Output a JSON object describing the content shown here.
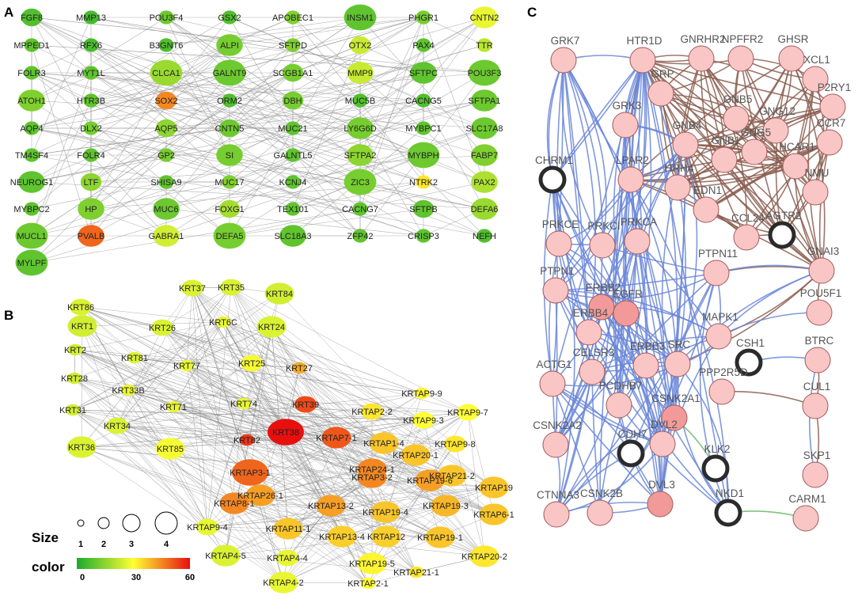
{
  "panel_a": {
    "letter": "A",
    "nodes": [
      [
        "FGF8",
        0.12,
        2
      ],
      [
        "MMP13",
        0.1,
        1
      ],
      [
        "POU3F4",
        0.18,
        1
      ],
      [
        "GSX2",
        0.12,
        1
      ],
      [
        "APOBEC1",
        0.22,
        1
      ],
      [
        "INSM1",
        0.15,
        4
      ],
      [
        "PHGR1",
        0.2,
        1
      ],
      [
        "CNTN2",
        0.45,
        3
      ],
      [
        "MPPED1",
        0.15,
        1
      ],
      [
        "RFX6",
        0.1,
        1
      ],
      [
        "B3GNT6",
        0.12,
        1
      ],
      [
        "ALPI",
        0.2,
        3
      ],
      [
        "SFTPD",
        0.22,
        1
      ],
      [
        "OTX2",
        0.38,
        2
      ],
      [
        "PAX4",
        0.15,
        1
      ],
      [
        "TTR",
        0.35,
        1
      ],
      [
        "FOLR3",
        0.15,
        1
      ],
      [
        "MYT1L",
        0.15,
        1
      ],
      [
        "CLCA1",
        0.28,
        4
      ],
      [
        "GALNT9",
        0.18,
        4
      ],
      [
        "SCGB1A1",
        0.2,
        2
      ],
      [
        "MMP9",
        0.38,
        3
      ],
      [
        "SFTPC",
        0.15,
        3
      ],
      [
        "POU3F3",
        0.18,
        4
      ],
      [
        "ATOH1",
        0.22,
        3
      ],
      [
        "HTR3B",
        0.15,
        1
      ],
      [
        "SOX2",
        0.75,
        2
      ],
      [
        "ORM2",
        0.12,
        1
      ],
      [
        "DBH",
        0.2,
        2
      ],
      [
        "MUC5B",
        0.12,
        1
      ],
      [
        "CACNG5",
        0.12,
        1
      ],
      [
        "SFTPA1",
        0.18,
        3
      ],
      [
        "AQP4",
        0.15,
        1
      ],
      [
        "DLX2",
        0.2,
        1
      ],
      [
        "AQP5",
        0.25,
        2
      ],
      [
        "CNTN5",
        0.18,
        2
      ],
      [
        "MUC21",
        0.15,
        1
      ],
      [
        "LY6G6D",
        0.2,
        3
      ],
      [
        "MYBPC1",
        0.15,
        1
      ],
      [
        "SLC17A8",
        0.18,
        3
      ],
      [
        "TM4SF4",
        0.15,
        1
      ],
      [
        "FOLR4",
        0.15,
        1
      ],
      [
        "GP2",
        0.2,
        1
      ],
      [
        "SI",
        0.2,
        3
      ],
      [
        "GALNTL5",
        0.15,
        1
      ],
      [
        "SFTPA2",
        0.25,
        3
      ],
      [
        "MYBPH",
        0.18,
        4
      ],
      [
        "FABP7",
        0.22,
        3
      ],
      [
        "NEUROG1",
        0.15,
        3
      ],
      [
        "LTF",
        0.25,
        2
      ],
      [
        "SHISA9",
        0.15,
        1
      ],
      [
        "MUC17",
        0.22,
        1
      ],
      [
        "KCNJ4",
        0.15,
        1
      ],
      [
        "ZIC3",
        0.2,
        4
      ],
      [
        "NTRK2",
        0.55,
        1
      ],
      [
        "PAX2",
        0.32,
        3
      ],
      [
        "MYBPC2",
        0.15,
        1
      ],
      [
        "HP",
        0.22,
        3
      ],
      [
        "MUC6",
        0.18,
        3
      ],
      [
        "FOXG1",
        0.3,
        2
      ],
      [
        "TEX101",
        0.15,
        1
      ],
      [
        "CACNG7",
        0.15,
        1
      ],
      [
        "SFTPB",
        0.15,
        2
      ],
      [
        "DEFA6",
        0.28,
        3
      ],
      [
        "MUCL1",
        0.18,
        4
      ],
      [
        "PVALB",
        0.82,
        3
      ],
      [
        "GABRA1",
        0.4,
        3
      ],
      [
        "DEFA5",
        0.2,
        4
      ],
      [
        "SLC18A3",
        0.15,
        3
      ],
      [
        "ZFP42",
        0.15,
        1
      ],
      [
        "CRISP3",
        0.15,
        1
      ],
      [
        "NEFH",
        0.12,
        1
      ],
      [
        "MYLPF",
        0.15,
        4
      ]
    ]
  },
  "panel_b": {
    "letter": "B",
    "nodes": [
      [
        "KRT37",
        0.42,
        2
      ],
      [
        "KRT35",
        0.42,
        2
      ],
      [
        "KRT84",
        0.4,
        3
      ],
      [
        "KRT86",
        0.42,
        2
      ],
      [
        "KRT1",
        0.4,
        3
      ],
      [
        "KRT26",
        0.42,
        2
      ],
      [
        "KRT6C",
        0.45,
        1
      ],
      [
        "KRT24",
        0.42,
        3
      ],
      [
        "KRT2",
        0.4,
        1
      ],
      [
        "KRT81",
        0.42,
        1
      ],
      [
        "KRT77",
        0.45,
        1
      ],
      [
        "KRT25",
        0.48,
        2
      ],
      [
        "KRT27",
        0.68,
        1
      ],
      [
        "KRT28",
        0.4,
        1
      ],
      [
        "KRT33B",
        0.45,
        1
      ],
      [
        "KRT31",
        0.4,
        1
      ],
      [
        "KRT71",
        0.45,
        1
      ],
      [
        "KRT74",
        0.45,
        1
      ],
      [
        "KRT39",
        0.88,
        2
      ],
      [
        "KRT34",
        0.42,
        2
      ],
      [
        "KRT36",
        0.42,
        3
      ],
      [
        "KRT85",
        0.48,
        3
      ],
      [
        "KRT82",
        0.92,
        1
      ],
      [
        "KRT38",
        1.0,
        4
      ],
      [
        "KRTAP9-9",
        0.52,
        1
      ],
      [
        "KRTAP2-2",
        0.55,
        2
      ],
      [
        "KRTAP9-7",
        0.5,
        2
      ],
      [
        "KRTAP9-3",
        0.5,
        2
      ],
      [
        "KRTAP7-1",
        0.85,
        3
      ],
      [
        "KRTAP1-4",
        0.62,
        3
      ],
      [
        "KRTAP9-8",
        0.55,
        2
      ],
      [
        "KRTAP20-1",
        0.62,
        3
      ],
      [
        "KRTAP24-1",
        0.75,
        3
      ],
      [
        "KRTAP3-1",
        0.82,
        4
      ],
      [
        "KRTAP3-2",
        0.75,
        3
      ],
      [
        "KRTAP21-2",
        0.62,
        3
      ],
      [
        "KRTAP26-1",
        0.7,
        3
      ],
      [
        "KRTAP19-6",
        0.7,
        3
      ],
      [
        "KRTAP19",
        0.62,
        3
      ],
      [
        "KRTAP8-1",
        0.75,
        3
      ],
      [
        "KRTAP13-2",
        0.7,
        3
      ],
      [
        "KRTAP19-3",
        0.65,
        3
      ],
      [
        "KRTAP19-4",
        0.62,
        3
      ],
      [
        "KRTAP6-1",
        0.62,
        3
      ],
      [
        "KRTAP9-4",
        0.45,
        2
      ],
      [
        "KRTAP11-1",
        0.62,
        3
      ],
      [
        "KRTAP13-4",
        0.6,
        3
      ],
      [
        "KRTAP12",
        0.6,
        3
      ],
      [
        "KRTAP19-1",
        0.62,
        3
      ],
      [
        "KRTAP4-5",
        0.42,
        3
      ],
      [
        "KRTAP4-4",
        0.45,
        2
      ],
      [
        "KRTAP19-5",
        0.52,
        3
      ],
      [
        "KRTAP20-2",
        0.55,
        3
      ],
      [
        "KRTAP21-1",
        0.55,
        1
      ],
      [
        "KRTAP4-2",
        0.45,
        3
      ],
      [
        "KRTAP2-1",
        0.5,
        1
      ]
    ],
    "legend": {
      "size_title": "Size",
      "size_ticks": [
        "1",
        "2",
        "3",
        "4"
      ],
      "color_title": "color",
      "color_ticks": [
        "0",
        "30",
        "60"
      ],
      "colors": [
        "#1aab2c",
        "#ffff33",
        "#e80f0f"
      ]
    }
  },
  "panel_c": {
    "letter": "C",
    "nodes": [
      "GRK7",
      "HTR1D",
      "GNRHR2",
      "NPFFR2",
      "GHSR",
      "GRP",
      "XCL1",
      "P2RY1",
      "GRK3",
      "GNB4",
      "GNB5",
      "GNG12",
      "CCR7",
      "GNG5",
      "CHRM1",
      "LPAR2",
      "GNB1",
      "HCAR1",
      "HRH4",
      "NMU",
      "EDN1",
      "CCL24",
      "AGTR2",
      "PRKCE",
      "PRKCI",
      "PRKCA",
      "GNAI3",
      "PTPN11",
      "PTPN1",
      "ERBB2",
      "EGFR",
      "POU5F1",
      "MAPK1",
      "ERBB4",
      "ACTG1",
      "SRC",
      "CSH1",
      "BTRC",
      "CELSR3",
      "ERBB3",
      "PCDHB7",
      "PPP2R5D",
      "CUL1",
      "CSNK2A1",
      "CSNK2A2",
      "CDH7",
      "DVL2",
      "KLK2",
      "SKP1",
      "DVL3",
      "CTNNA3",
      "CSNK2B",
      "NKD1",
      "CARM1"
    ],
    "colors": {
      "node_fill": "#f9c5c5",
      "seed_fill": "#f29a9a",
      "ring": "#2b2b2b",
      "edge_blue": "#6a86d8",
      "edge_brown": "#8b5e50",
      "edge_green": "#6cb86a"
    }
  }
}
